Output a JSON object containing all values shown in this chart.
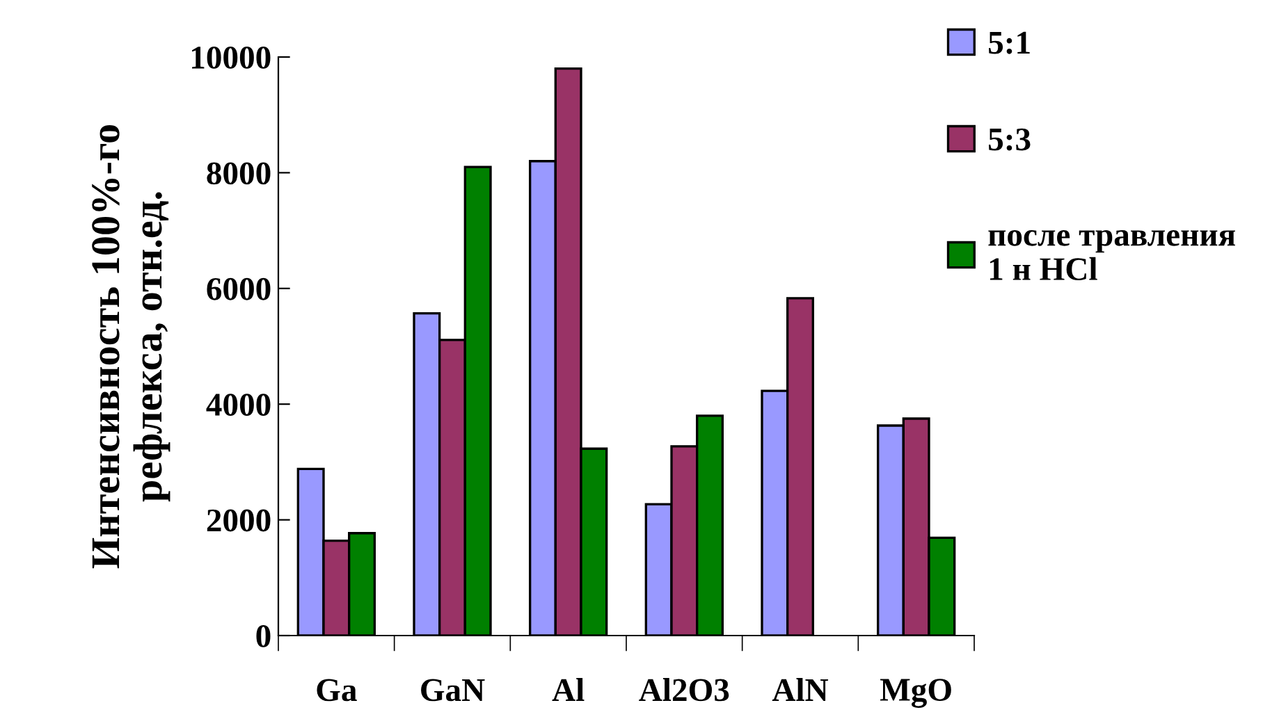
{
  "chart_data": {
    "type": "bar",
    "ylabel": "Интенсивность 100%-го\nрефлекса, отн.ед.",
    "categories": [
      "Ga",
      "GaN",
      "Al",
      "Al2O3",
      "AlN",
      "MgO"
    ],
    "series": [
      {
        "name": "5:1",
        "color": "#9999ff",
        "values": [
          2880,
          5570,
          8200,
          2270,
          4230,
          3630
        ]
      },
      {
        "name": "5:3",
        "color": "#993366",
        "values": [
          1640,
          5110,
          9800,
          3270,
          5830,
          3750
        ]
      },
      {
        "name": "после травления\n1 н HCl",
        "color": "#008000",
        "values": [
          1770,
          8100,
          3230,
          3800,
          null,
          1690
        ]
      }
    ],
    "ylim": [
      0,
      10000
    ],
    "yticks": [
      0,
      2000,
      4000,
      6000,
      8000,
      10000
    ],
    "legend": "top right"
  }
}
